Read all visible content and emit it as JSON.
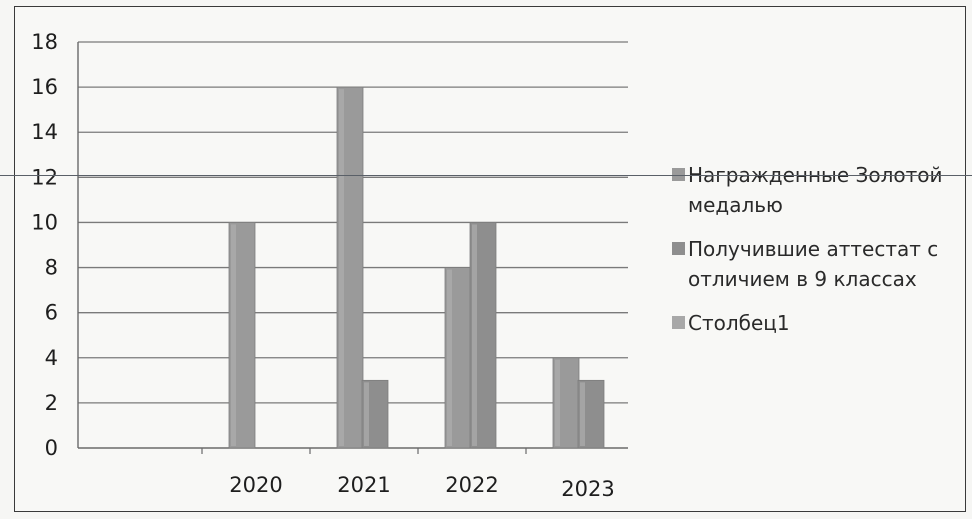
{
  "chart_data": {
    "type": "bar",
    "categories": [
      "2020",
      "2021",
      "2022",
      "2023"
    ],
    "series": [
      {
        "name": "Награжденные Золотой медалью",
        "values": [
          10,
          16,
          8,
          4
        ],
        "color": "#9a9a9a"
      },
      {
        "name": "Получившие аттестат с отличием в 9 классах",
        "values": [
          0,
          3,
          10,
          3
        ],
        "color": "#8e8e8e"
      },
      {
        "name": "Столбец1",
        "values": [
          0,
          0,
          0,
          0
        ],
        "color": "#a8a8a8"
      }
    ],
    "yticks": [
      "0",
      "2",
      "4",
      "6",
      "8",
      "10",
      "12",
      "14",
      "16",
      "18"
    ],
    "ylim": [
      0,
      18
    ],
    "grid": true,
    "legend_position": "right",
    "title": "",
    "xlabel": "",
    "ylabel": ""
  }
}
